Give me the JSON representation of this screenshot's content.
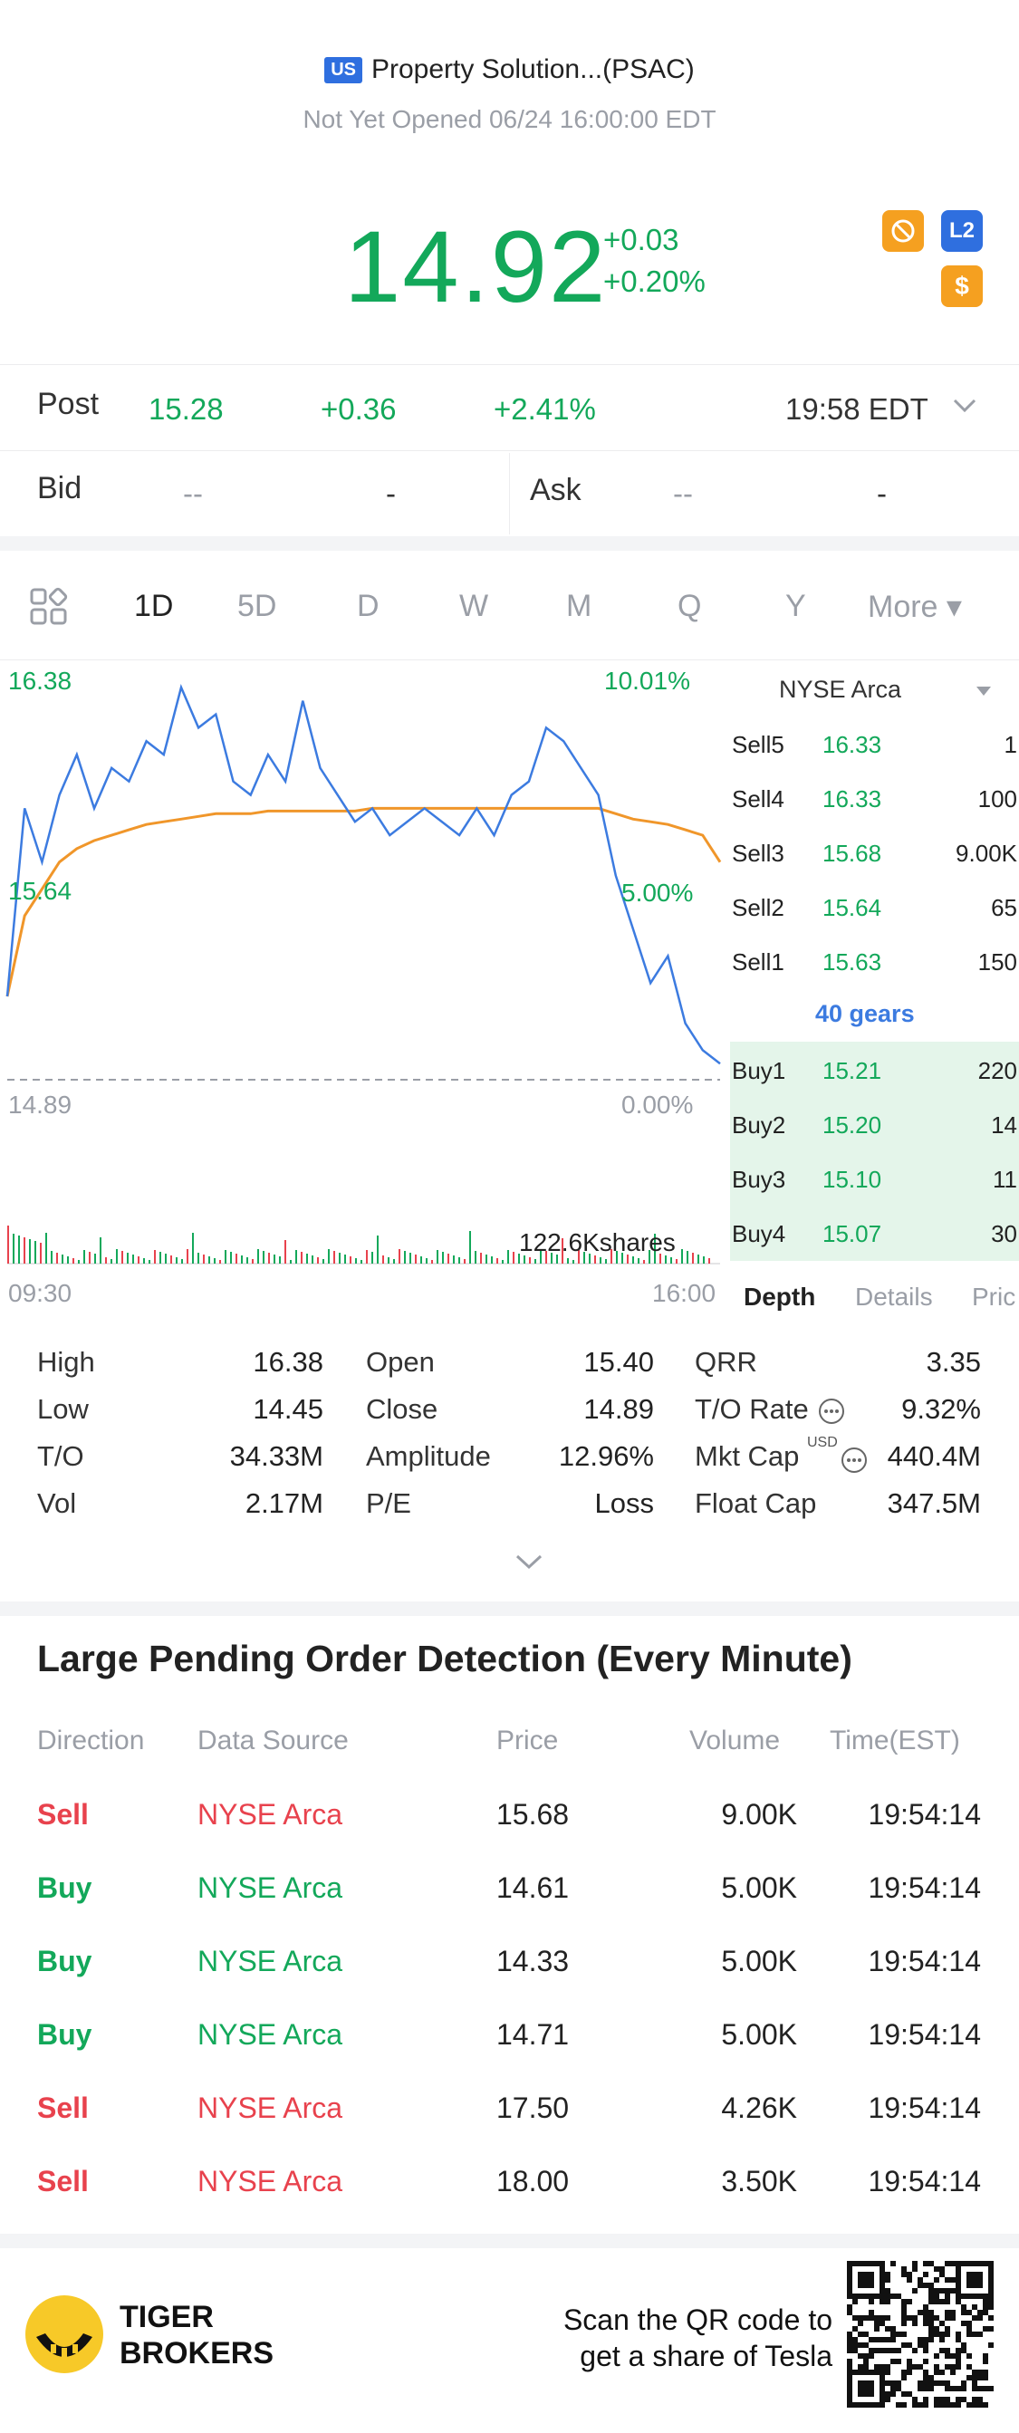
{
  "header": {
    "market_badge": "US",
    "title": "Property Solution...(PSAC)",
    "status": "Not Yet Opened 06/24 16:00:00 EDT"
  },
  "quote": {
    "price": "14.92",
    "change": "+0.03",
    "change_pct": "+0.20%",
    "icons": [
      "no-sign-icon",
      "L2",
      "$"
    ]
  },
  "post": {
    "label": "Post",
    "price": "15.28",
    "change": "+0.36",
    "change_pct": "+2.41%",
    "time": "19:58 EDT"
  },
  "bid_ask": {
    "bid_label": "Bid",
    "bid1": "--",
    "bid2": "-",
    "ask_label": "Ask",
    "ask1": "--",
    "ask2": "-"
  },
  "chart_tabs": [
    "1D",
    "5D",
    "D",
    "W",
    "M",
    "Q",
    "Y",
    "More ▾"
  ],
  "chart_data": {
    "type": "line",
    "series": [
      {
        "values": [
          15.2,
          15.9,
          15.7,
          15.95,
          16.1,
          15.9,
          16.05,
          16.0,
          16.15,
          16.1,
          16.35,
          16.2,
          16.25,
          16.0,
          15.95,
          16.1,
          16.0,
          16.3,
          16.05,
          15.95,
          15.85,
          15.9,
          15.8,
          15.85,
          15.9,
          15.85,
          15.8,
          15.9,
          15.8,
          15.95,
          16.0,
          16.2,
          16.15,
          16.05,
          15.95,
          15.65,
          15.45,
          15.25,
          15.35,
          15.1,
          15.0,
          14.95
        ]
      },
      {
        "values": [
          15.2,
          15.5,
          15.6,
          15.7,
          15.75,
          15.78,
          15.8,
          15.82,
          15.84,
          15.85,
          15.86,
          15.87,
          15.88,
          15.88,
          15.88,
          15.89,
          15.89,
          15.89,
          15.89,
          15.89,
          15.89,
          15.9,
          15.9,
          15.9,
          15.9,
          15.9,
          15.9,
          15.9,
          15.9,
          15.9,
          15.9,
          15.9,
          15.9,
          15.9,
          15.9,
          15.88,
          15.86,
          15.85,
          15.84,
          15.82,
          15.8,
          15.7
        ]
      }
    ],
    "y_ticks": [
      "16.38",
      "15.64",
      "14.89"
    ],
    "pct_ticks": [
      "10.01%",
      "5.00%",
      "0.00%"
    ],
    "x_ticks": [
      "09:30",
      "16:00"
    ],
    "volume_label": "122.6Kshares"
  },
  "depth": {
    "exchange": "NYSE Arca",
    "sells": [
      {
        "label": "Sell5",
        "price": "16.33",
        "qty": "1"
      },
      {
        "label": "Sell4",
        "price": "16.33",
        "qty": "100"
      },
      {
        "label": "Sell3",
        "price": "15.68",
        "qty": "9.00K"
      },
      {
        "label": "Sell2",
        "price": "15.64",
        "qty": "65"
      },
      {
        "label": "Sell1",
        "price": "15.63",
        "qty": "150"
      }
    ],
    "gears": "40 gears",
    "buys": [
      {
        "label": "Buy1",
        "price": "15.21",
        "qty": "220"
      },
      {
        "label": "Buy2",
        "price": "15.20",
        "qty": "14"
      },
      {
        "label": "Buy3",
        "price": "15.10",
        "qty": "11"
      },
      {
        "label": "Buy4",
        "price": "15.07",
        "qty": "30"
      }
    ],
    "tabs": [
      "Depth",
      "Details",
      "Pric"
    ]
  },
  "stats": {
    "col1": [
      [
        "High",
        "16.38"
      ],
      [
        "Low",
        "14.45"
      ],
      [
        "T/O",
        "34.33M"
      ],
      [
        "Vol",
        "2.17M"
      ]
    ],
    "col2": [
      [
        "Open",
        "15.40"
      ],
      [
        "Close",
        "14.89"
      ],
      [
        "Amplitude",
        "12.96%"
      ],
      [
        "P/E",
        "Loss"
      ]
    ],
    "col3": [
      [
        "QRR",
        "3.35"
      ],
      [
        "T/O Rate",
        "9.32%"
      ],
      [
        "Mkt Cap",
        "440.4M"
      ],
      [
        "Float Cap",
        "347.5M"
      ]
    ],
    "usd": "USD"
  },
  "large_pending": {
    "title": "Large Pending Order Detection (Every Minute)",
    "headers": [
      "Direction",
      "Data Source",
      "Price",
      "Volume",
      "Time(EST)"
    ],
    "rows": [
      {
        "dir": "Sell",
        "src": "NYSE Arca",
        "price": "15.68",
        "vol": "9.00K",
        "time": "19:54:14"
      },
      {
        "dir": "Buy",
        "src": "NYSE Arca",
        "price": "14.61",
        "vol": "5.00K",
        "time": "19:54:14"
      },
      {
        "dir": "Buy",
        "src": "NYSE Arca",
        "price": "14.33",
        "vol": "5.00K",
        "time": "19:54:14"
      },
      {
        "dir": "Buy",
        "src": "NYSE Arca",
        "price": "14.71",
        "vol": "5.00K",
        "time": "19:54:14"
      },
      {
        "dir": "Sell",
        "src": "NYSE Arca",
        "price": "17.50",
        "vol": "4.26K",
        "time": "19:54:14"
      },
      {
        "dir": "Sell",
        "src": "NYSE Arca",
        "price": "18.00",
        "vol": "3.50K",
        "time": "19:54:14"
      }
    ]
  },
  "footer": {
    "brand_line1": "TIGER",
    "brand_line2": "BROKERS",
    "scan_line1": "Scan the QR code to",
    "scan_line2": "get a share of Tesla"
  },
  "colors": {
    "up": "#13a85a",
    "down": "#e8424d",
    "line": "#3c7be0",
    "avg": "#f0962a"
  }
}
